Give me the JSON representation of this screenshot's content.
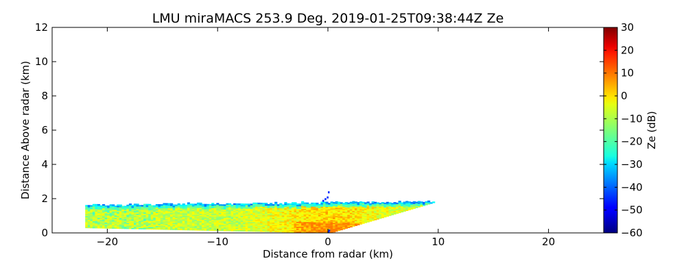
{
  "chart_data": {
    "type": "heatmap",
    "title": "LMU miraMACS 253.9 Deg. 2019-01-25T09:38:44Z  Ze",
    "xlabel": "Distance from radar (km)",
    "ylabel": "Distance Above radar  (km)",
    "xlim": [
      -25,
      25
    ],
    "ylim": [
      0,
      12
    ],
    "x_ticks": [
      -20,
      -10,
      0,
      10,
      20
    ],
    "x_tick_labels": [
      "−20",
      "−10",
      "0",
      "10",
      "20"
    ],
    "y_ticks": [
      0,
      2,
      4,
      6,
      8,
      10,
      12
    ],
    "y_tick_labels": [
      "0",
      "2",
      "4",
      "6",
      "8",
      "10",
      "12"
    ],
    "colorbar": {
      "label": "Ze (dB)",
      "min": -60,
      "max": 30,
      "ticks": [
        30,
        20,
        10,
        0,
        -10,
        -20,
        -30,
        -40,
        -50,
        -60
      ],
      "tick_labels": [
        "30",
        "20",
        "10",
        "0",
        "−10",
        "−20",
        "−30",
        "−40",
        "−50",
        "−60"
      ],
      "colormap": "jet"
    },
    "echo_region": {
      "x_range_km": [
        -22,
        9.5
      ],
      "top_height_km": [
        1.6,
        1.8
      ],
      "bottom_height_km_far": 0.3,
      "left_edge_heights_km": [
        0.3,
        1.4
      ],
      "right_end_point_km": [
        9.5,
        1.8
      ],
      "dominant_ze_db_range": [
        -20,
        5
      ],
      "cloud_top_ze_db": -40,
      "max_ze_db_near_radar": 8
    }
  }
}
